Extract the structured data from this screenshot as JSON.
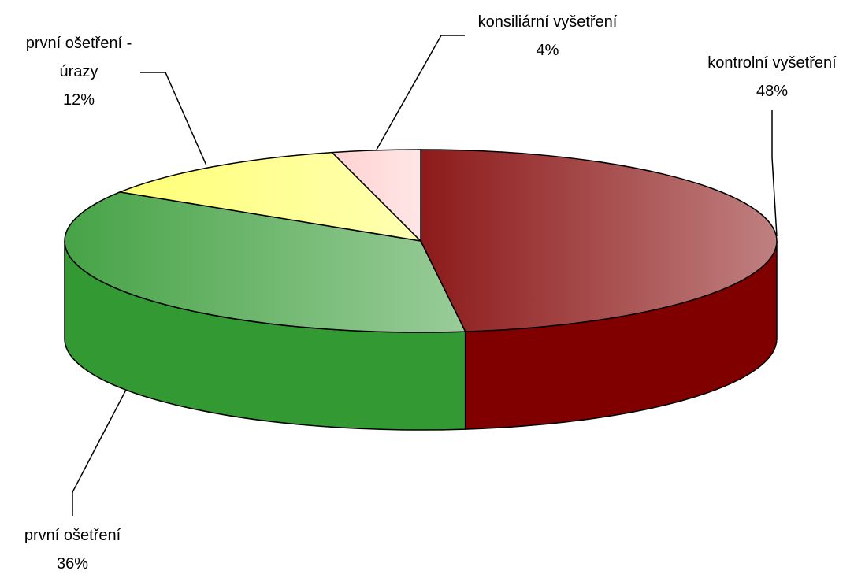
{
  "chart_data": {
    "type": "pie3d",
    "categories": [
      "kontrolní vyšetření",
      "první ošetření",
      "první ošetření - úrazy",
      "konsiliární vyšetření"
    ],
    "values": [
      48,
      36,
      12,
      4
    ],
    "value_labels": [
      "48%",
      "36%",
      "12%",
      "4%"
    ],
    "colors": [
      "#800000",
      "#339933",
      "#ffff66",
      "#ffcccc"
    ]
  }
}
